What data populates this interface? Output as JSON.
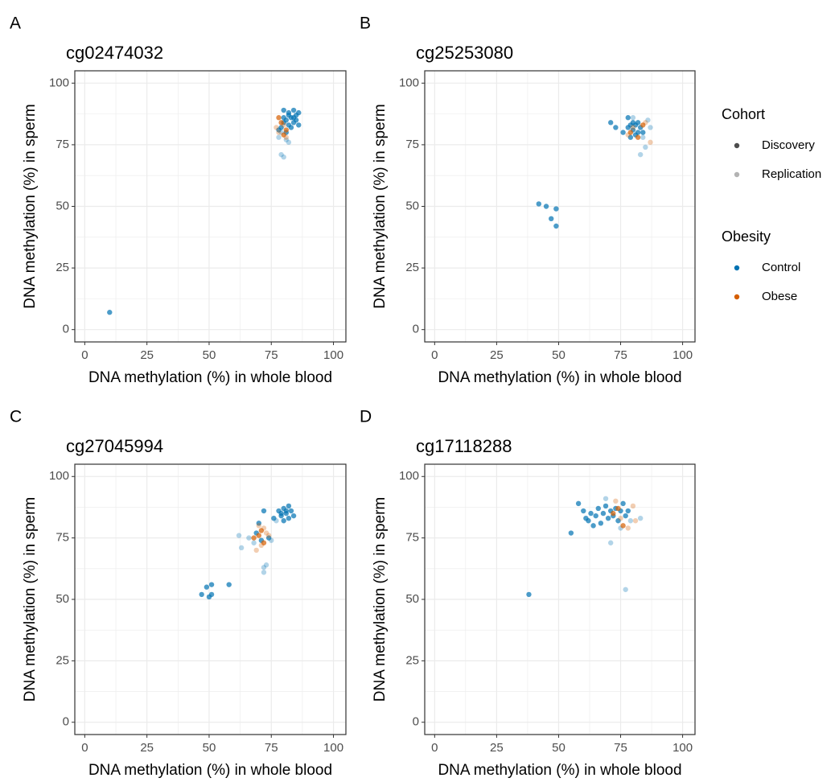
{
  "chart_data": [
    {
      "type": "scatter",
      "panel": "A",
      "title": "cg02474032",
      "x_label": "DNA methylation (%) in whole blood",
      "y_label": "DNA methylation (%) in sperm",
      "xlim": [
        -4,
        105
      ],
      "ylim": [
        -5,
        105
      ],
      "xticks": [
        0,
        25,
        50,
        75,
        100
      ],
      "yticks": [
        0,
        25,
        50,
        75,
        100
      ],
      "grid": true,
      "minor_grid": true,
      "series": [
        {
          "cohort": "Discovery",
          "obesity": "Control",
          "x": [
            10,
            80,
            82,
            84,
            83,
            85,
            81,
            84,
            86,
            82,
            80,
            83,
            85,
            79,
            81,
            84,
            82,
            86,
            78,
            80
          ],
          "y": [
            7,
            89,
            88,
            89,
            86,
            87,
            85,
            84,
            88,
            83,
            84,
            82,
            85,
            82,
            80,
            86,
            87,
            83,
            81,
            86
          ]
        },
        {
          "cohort": "Replication",
          "obesity": "Control",
          "x": [
            79,
            80,
            78,
            81,
            82,
            79
          ],
          "y": [
            71,
            70,
            78,
            77,
            76,
            80
          ]
        },
        {
          "cohort": "Discovery",
          "obesity": "Obese",
          "x": [
            78,
            80,
            81,
            79
          ],
          "y": [
            86,
            79,
            81,
            84
          ]
        },
        {
          "cohort": "Replication",
          "obesity": "Obese",
          "x": [
            78,
            80,
            81,
            77
          ],
          "y": [
            80,
            83,
            78,
            82
          ]
        }
      ]
    },
    {
      "type": "scatter",
      "panel": "B",
      "title": "cg25253080",
      "x_label": "DNA methylation (%) in whole blood",
      "y_label": "DNA methylation (%) in sperm",
      "xlim": [
        -4,
        105
      ],
      "ylim": [
        -5,
        105
      ],
      "xticks": [
        0,
        25,
        50,
        75,
        100
      ],
      "yticks": [
        0,
        25,
        50,
        75,
        100
      ],
      "grid": true,
      "minor_grid": true,
      "series": [
        {
          "cohort": "Discovery",
          "obesity": "Control",
          "x": [
            42,
            45,
            49,
            47,
            49,
            71,
            73,
            76,
            78,
            79,
            80,
            82,
            81,
            83,
            79,
            84,
            80,
            82,
            78,
            81
          ],
          "y": [
            51,
            50,
            49,
            45,
            42,
            84,
            82,
            80,
            86,
            83,
            81,
            84,
            79,
            82,
            78,
            80,
            84,
            80,
            82,
            83
          ]
        },
        {
          "cohort": "Replication",
          "obesity": "Control",
          "x": [
            83,
            85,
            87,
            86,
            84,
            80
          ],
          "y": [
            71,
            74,
            82,
            85,
            78,
            86
          ]
        },
        {
          "cohort": "Discovery",
          "obesity": "Obese",
          "x": [
            79,
            82,
            84
          ],
          "y": [
            80,
            78,
            83
          ]
        },
        {
          "cohort": "Replication",
          "obesity": "Obese",
          "x": [
            87,
            85,
            80,
            78
          ],
          "y": [
            76,
            84,
            82,
            79
          ]
        }
      ]
    },
    {
      "type": "scatter",
      "panel": "C",
      "title": "cg27045994",
      "x_label": "DNA methylation (%) in whole blood",
      "y_label": "DNA methylation (%) in sperm",
      "xlim": [
        -4,
        105
      ],
      "ylim": [
        -5,
        105
      ],
      "xticks": [
        0,
        25,
        50,
        75,
        100
      ],
      "yticks": [
        0,
        25,
        50,
        75,
        100
      ],
      "grid": true,
      "minor_grid": true,
      "series": [
        {
          "cohort": "Discovery",
          "obesity": "Control",
          "x": [
            47,
            49,
            51,
            50,
            51,
            58,
            70,
            72,
            76,
            78,
            79,
            80,
            81,
            82,
            83,
            84,
            80,
            82,
            79,
            81,
            71,
            69,
            74
          ],
          "y": [
            52,
            55,
            52,
            51,
            56,
            56,
            81,
            86,
            83,
            86,
            84,
            87,
            85,
            83,
            86,
            84,
            82,
            88,
            85,
            86,
            74,
            77,
            75
          ]
        },
        {
          "cohort": "Replication",
          "obesity": "Control",
          "x": [
            72,
            72,
            73,
            62,
            63,
            66,
            75,
            77,
            68
          ],
          "y": [
            63,
            61,
            64,
            76,
            71,
            75,
            74,
            82,
            73
          ]
        },
        {
          "cohort": "Discovery",
          "obesity": "Obese",
          "x": [
            70,
            71,
            72,
            68
          ],
          "y": [
            76,
            78,
            73,
            75
          ]
        },
        {
          "cohort": "Replication",
          "obesity": "Obese",
          "x": [
            70,
            71,
            73,
            72,
            69,
            74
          ],
          "y": [
            80,
            72,
            77,
            79,
            70,
            76
          ]
        }
      ]
    },
    {
      "type": "scatter",
      "panel": "D",
      "title": "cg17118288",
      "x_label": "DNA methylation (%) in whole blood",
      "y_label": "DNA methylation (%) in sperm",
      "xlim": [
        -4,
        105
      ],
      "ylim": [
        -5,
        105
      ],
      "xticks": [
        0,
        25,
        50,
        75,
        100
      ],
      "yticks": [
        0,
        25,
        50,
        75,
        100
      ],
      "grid": true,
      "minor_grid": true,
      "series": [
        {
          "cohort": "Discovery",
          "obesity": "Control",
          "x": [
            38,
            55,
            58,
            60,
            62,
            63,
            65,
            66,
            67,
            68,
            69,
            70,
            71,
            72,
            73,
            74,
            75,
            76,
            77,
            78,
            64,
            61
          ],
          "y": [
            52,
            77,
            89,
            86,
            82,
            85,
            84,
            87,
            81,
            85,
            88,
            83,
            86,
            84,
            87,
            82,
            86,
            89,
            84,
            86,
            80,
            83
          ]
        },
        {
          "cohort": "Replication",
          "obesity": "Control",
          "x": [
            71,
            77,
            69,
            83,
            79,
            75
          ],
          "y": [
            73,
            54,
            91,
            83,
            82,
            79
          ]
        },
        {
          "cohort": "Discovery",
          "obesity": "Obese",
          "x": [
            72,
            76,
            74
          ],
          "y": [
            85,
            80,
            87
          ]
        },
        {
          "cohort": "Replication",
          "obesity": "Obese",
          "x": [
            78,
            80,
            81,
            75,
            73
          ],
          "y": [
            79,
            88,
            82,
            83,
            90
          ]
        }
      ]
    }
  ],
  "legend": {
    "cohort": {
      "title": "Cohort",
      "items": [
        {
          "name": "Discovery",
          "color": "#4d4d4d",
          "alpha": 0.7
        },
        {
          "name": "Replication",
          "color": "#b3b3b3",
          "alpha": 0.3
        }
      ]
    },
    "obesity": {
      "title": "Obesity",
      "items": [
        {
          "name": "Control",
          "color": "#0072B2"
        },
        {
          "name": "Obese",
          "color": "#D55E00"
        }
      ]
    }
  }
}
